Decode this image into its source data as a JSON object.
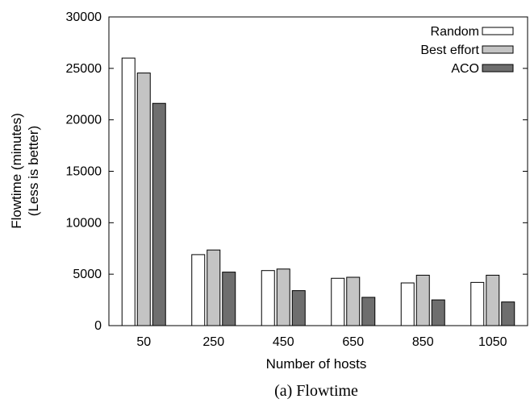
{
  "chart_data": {
    "type": "bar",
    "categories": [
      "50",
      "250",
      "450",
      "650",
      "850",
      "1050"
    ],
    "series": [
      {
        "name": "Random",
        "values": [
          26000,
          6900,
          5350,
          4600,
          4150,
          4200
        ],
        "color": "#ffffff"
      },
      {
        "name": "Best effort",
        "values": [
          24550,
          7350,
          5500,
          4700,
          4900,
          4900
        ],
        "color": "#c4c4c4"
      },
      {
        "name": "ACO",
        "values": [
          21600,
          5200,
          3400,
          2750,
          2500,
          2300
        ],
        "color": "#6e6e6e"
      }
    ],
    "xlabel": "Number of hosts",
    "ylabel": [
      "Flowtime (minutes)",
      "(Less is better)"
    ],
    "ylim": [
      0,
      30000
    ],
    "yticks": [
      "0",
      "5000",
      "10000",
      "15000",
      "20000",
      "25000",
      "30000"
    ],
    "legend_position": "top-right",
    "grid": false
  },
  "caption": "(a) Flowtime"
}
